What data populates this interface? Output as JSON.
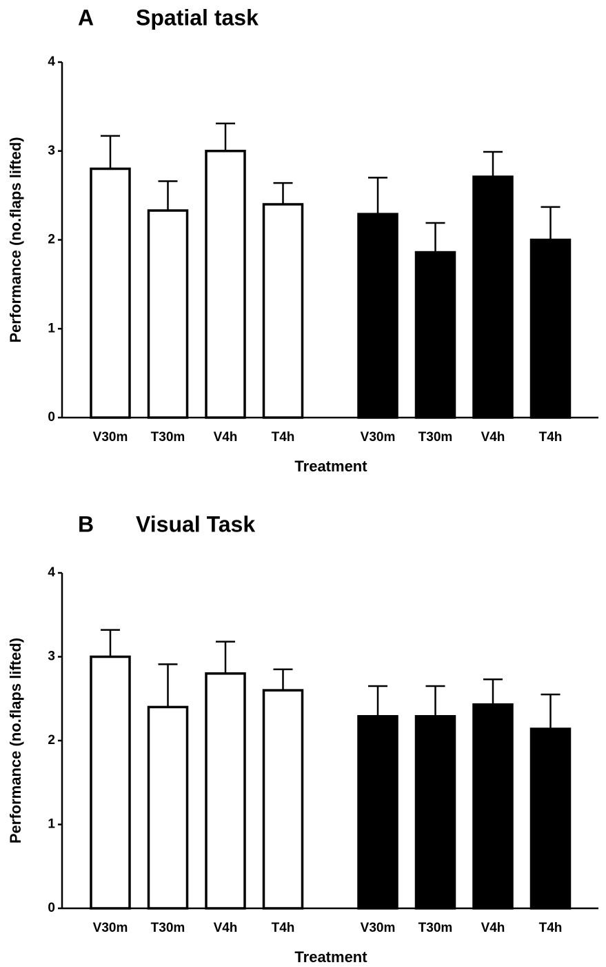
{
  "chart_data": [
    {
      "type": "bar",
      "panel_label": "A",
      "title": "Spatial task",
      "y_label": "Performance (no.flaps lifted)",
      "x_label": "Treatment",
      "categories": [
        "V30m",
        "T30m",
        "V4h",
        "T4h",
        "V30m",
        "T30m",
        "V4h",
        "T4h"
      ],
      "values": [
        2.8,
        2.33,
        3.0,
        2.4,
        2.29,
        1.86,
        2.71,
        2.0
      ],
      "errors": [
        0.37,
        0.33,
        0.31,
        0.24,
        0.41,
        0.33,
        0.28,
        0.37
      ],
      "colors": [
        "#ffffff",
        "#ffffff",
        "#ffffff",
        "#ffffff",
        "#000000",
        "#000000",
        "#000000",
        "#000000"
      ],
      "edgecolor": "#000000",
      "ylim": [
        0,
        4
      ],
      "yticks": [
        0,
        1,
        2,
        3,
        4
      ]
    },
    {
      "type": "bar",
      "panel_label": "B",
      "title": "Visual Task",
      "y_label": "Performance (no.flaps lifted)",
      "x_label": "Treatment",
      "categories": [
        "V30m",
        "T30m",
        "V4h",
        "T4h",
        "V30m",
        "T30m",
        "V4h",
        "T4h"
      ],
      "values": [
        3.0,
        2.4,
        2.8,
        2.6,
        2.29,
        2.29,
        2.43,
        2.14
      ],
      "errors": [
        0.32,
        0.51,
        0.38,
        0.25,
        0.36,
        0.36,
        0.3,
        0.41
      ],
      "colors": [
        "#ffffff",
        "#ffffff",
        "#ffffff",
        "#ffffff",
        "#000000",
        "#000000",
        "#000000",
        "#000000"
      ],
      "edgecolor": "#000000",
      "ylim": [
        0,
        4
      ],
      "yticks": [
        0,
        1,
        2,
        3,
        4
      ]
    }
  ]
}
